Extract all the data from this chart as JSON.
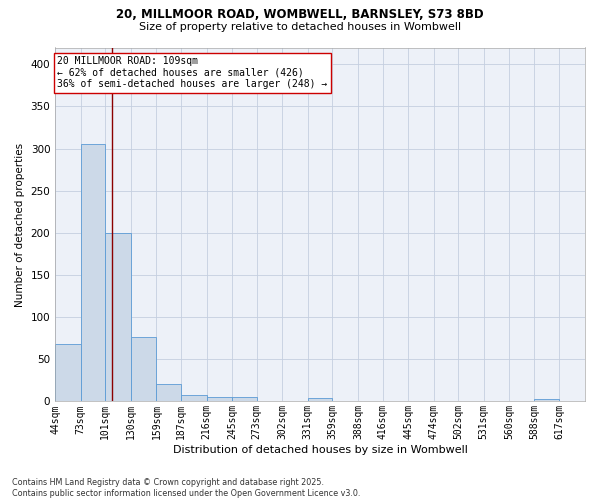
{
  "title_line1": "20, MILLMOOR ROAD, WOMBWELL, BARNSLEY, S73 8BD",
  "title_line2": "Size of property relative to detached houses in Wombwell",
  "xlabel": "Distribution of detached houses by size in Wombwell",
  "ylabel": "Number of detached properties",
  "bar_color": "#ccd9e8",
  "bar_edge_color": "#5b9bd5",
  "grid_color": "#c5cfe0",
  "background_color": "#edf1f8",
  "annotation_text": "20 MILLMOOR ROAD: 109sqm\n← 62% of detached houses are smaller (426)\n36% of semi-detached houses are larger (248) →",
  "vline_x": 109,
  "vline_color": "#8b0000",
  "categories": [
    "44sqm",
    "73sqm",
    "101sqm",
    "130sqm",
    "159sqm",
    "187sqm",
    "216sqm",
    "245sqm",
    "273sqm",
    "302sqm",
    "331sqm",
    "359sqm",
    "388sqm",
    "416sqm",
    "445sqm",
    "474sqm",
    "502sqm",
    "531sqm",
    "560sqm",
    "588sqm",
    "617sqm"
  ],
  "values": [
    68,
    305,
    200,
    77,
    21,
    8,
    5,
    5,
    0,
    0,
    4,
    0,
    0,
    0,
    0,
    0,
    0,
    0,
    0,
    3,
    0
  ],
  "bin_edges": [
    44,
    73,
    101,
    130,
    159,
    187,
    216,
    245,
    273,
    302,
    331,
    359,
    388,
    416,
    445,
    474,
    502,
    531,
    560,
    588,
    617,
    646
  ],
  "ylim": [
    0,
    420
  ],
  "yticks": [
    0,
    50,
    100,
    150,
    200,
    250,
    300,
    350,
    400
  ],
  "footnote_line1": "Contains HM Land Registry data © Crown copyright and database right 2025.",
  "footnote_line2": "Contains public sector information licensed under the Open Government Licence v3.0."
}
